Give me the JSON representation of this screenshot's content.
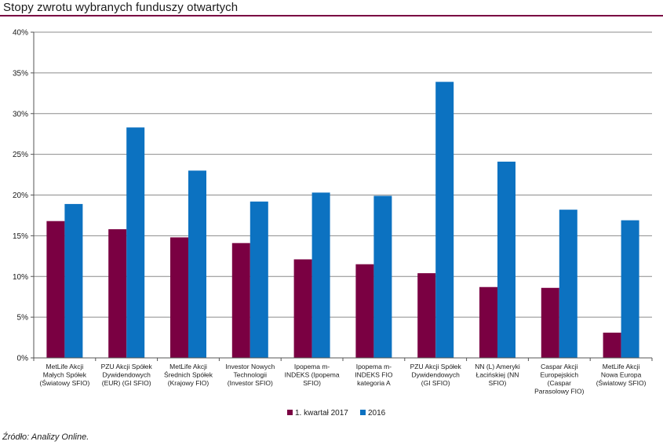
{
  "title": "Stopy zwrotu wybranych funduszy otwartych",
  "source": "Źródło: Analizy Online.",
  "colors": {
    "accent": "#7a0042",
    "series1": "#7a0042",
    "series2": "#0c72c1",
    "grid": "#8c8c8c"
  },
  "chart_data": {
    "type": "bar",
    "title": "",
    "xlabel": "",
    "ylabel": "",
    "ylim": [
      0,
      40
    ],
    "yticks": [
      "0%",
      "5%",
      "10%",
      "15%",
      "20%",
      "25%",
      "30%",
      "35%",
      "40%"
    ],
    "grid": true,
    "legend_position": "bottom",
    "categories": [
      [
        "MetLife Akcji",
        "Małych Spółek",
        "(Światowy SFIO)"
      ],
      [
        "PZU Akcji Spółek",
        "Dywidendowych",
        "(EUR) (GI SFIO)"
      ],
      [
        "MetLife Akcji",
        "Średnich Spółek",
        "(Krajowy FIO)"
      ],
      [
        "Investor Nowych",
        "Technologii",
        "(Investor SFIO)"
      ],
      [
        "Ipopema m-",
        "INDEKS (Ipopema",
        "SFIO)"
      ],
      [
        "Ipopema m-",
        "INDEKS FIO",
        "kategoria A"
      ],
      [
        "PZU Akcji Spółek",
        "Dywidendowych",
        "(GI SFIO)"
      ],
      [
        "NN (L) Ameryki",
        "Łacińskiej (NN",
        "SFIO)"
      ],
      [
        "Caspar Akcji",
        "Europejskich",
        "(Caspar",
        "Parasolowy FIO)"
      ],
      [
        "MetLife Akcji",
        "Nowa Europa",
        "(Światowy SFIO)"
      ]
    ],
    "series": [
      {
        "name": "1. kwartał 2017",
        "color": "#7a0042",
        "values": [
          16.8,
          15.8,
          14.8,
          14.1,
          12.1,
          11.5,
          10.4,
          8.7,
          8.6,
          3.1
        ]
      },
      {
        "name": "2016",
        "color": "#0c72c1",
        "values": [
          18.9,
          28.3,
          23.0,
          19.2,
          20.3,
          19.9,
          33.9,
          24.1,
          18.2,
          16.9
        ]
      }
    ]
  }
}
